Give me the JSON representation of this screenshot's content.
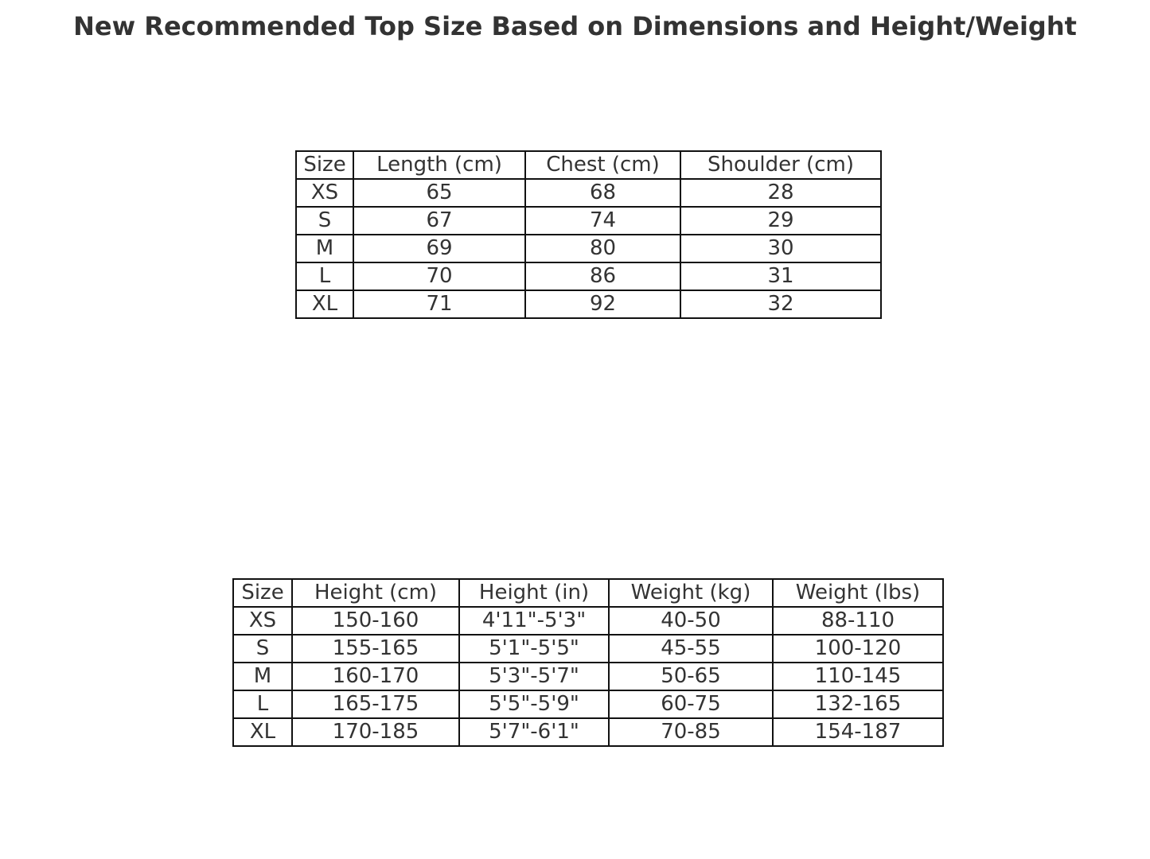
{
  "chart_data": [
    {
      "type": "table",
      "title": "New Recommended Top Size Based on Dimensions and Height/Weight",
      "columns": [
        "Size",
        "Length (cm)",
        "Chest (cm)",
        "Shoulder (cm)"
      ],
      "rows": [
        [
          "XS",
          "65",
          "68",
          "28"
        ],
        [
          "S",
          "67",
          "74",
          "29"
        ],
        [
          "M",
          "69",
          "80",
          "30"
        ],
        [
          "L",
          "70",
          "86",
          "31"
        ],
        [
          "XL",
          "71",
          "92",
          "32"
        ]
      ]
    },
    {
      "type": "table",
      "columns": [
        "Size",
        "Height (cm)",
        "Height (in)",
        "Weight (kg)",
        "Weight (lbs)"
      ],
      "rows": [
        [
          "XS",
          "150-160",
          "4'11\"-5'3\"",
          "40-50",
          "88-110"
        ],
        [
          "S",
          "155-165",
          "5'1\"-5'5\"",
          "45-55",
          "100-120"
        ],
        [
          "M",
          "160-170",
          "5'3\"-5'7\"",
          "50-65",
          "110-145"
        ],
        [
          "L",
          "165-175",
          "5'5\"-5'9\"",
          "60-75",
          "132-165"
        ],
        [
          "XL",
          "170-185",
          "5'7\"-6'1\"",
          "70-85",
          "154-187"
        ]
      ]
    }
  ]
}
